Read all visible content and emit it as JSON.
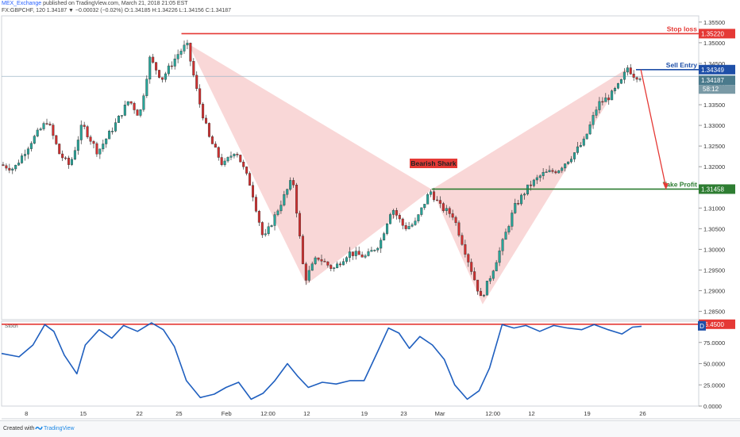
{
  "header": {
    "publisher": "MEX_Exchange",
    "line1_rest": "published on TradingView.com, March 21, 2018 21:05 EST",
    "line2": "FX:GBPCHF, 120  1.34187  ▼ −0.00032 (−0.02%)  O:1.34185  H:1.34226  L:1.34156  C:1.34187"
  },
  "footer": {
    "created_with": "Created with",
    "brand": "TradingView"
  },
  "colors": {
    "up": "#26a69a",
    "down": "#d32f2f",
    "outline": "#333333",
    "pattern_fill": "#f6c6c6",
    "stop_line": "#e53935",
    "entry_line": "#1e4fa8",
    "tp_line": "#2e7d32",
    "stoch": "#1f5fbf",
    "badge_red": "#e53935",
    "badge_green": "#2e7d32",
    "badge_blue": "#1e4fa8"
  },
  "chart_data": [
    {
      "type": "candlestick",
      "symbol": "FX:GBPCHF",
      "interval": "120",
      "ylim": [
        1.283,
        1.3565
      ],
      "y_ticks": [
        "1.35500",
        "1.35000",
        "1.34500",
        "1.34000",
        "1.33500",
        "1.33000",
        "1.32500",
        "1.32000",
        "1.31500",
        "1.31000",
        "1.30500",
        "1.30000",
        "1.29500",
        "1.29000",
        "1.28500"
      ],
      "x_ticks": [
        "8",
        "15",
        "22",
        "25",
        "Feb",
        "12:00",
        "12",
        "19",
        "23",
        "Mar",
        "12:00",
        "12",
        "19",
        "26"
      ],
      "levels": [
        {
          "label": "Stop loss",
          "value": 1.3522,
          "price_label": "1.35220",
          "color_key": "stop_line"
        },
        {
          "label": "Sell Entry",
          "value": 1.34349,
          "price_label": "1.34349",
          "color_key": "entry_line"
        },
        {
          "label": "Take Profit",
          "value": 1.31458,
          "price_label": "1.31458",
          "color_key": "tp_line"
        }
      ],
      "current_price": "1.34187",
      "countdown": "58:12",
      "pattern": {
        "label": "Bearish Shark",
        "points": [
          {
            "t": 0.268,
            "price": 1.3497
          },
          {
            "t": 0.437,
            "price": 1.2915
          },
          {
            "t": 0.617,
            "price": 1.3145
          },
          {
            "t": 0.69,
            "price": 1.2867
          },
          {
            "t": 0.9,
            "price": 1.344
          }
        ]
      },
      "waypoints": [
        {
          "t": 0.0,
          "price": 1.3205
        },
        {
          "t": 0.02,
          "price": 1.3195
        },
        {
          "t": 0.045,
          "price": 1.3262
        },
        {
          "t": 0.068,
          "price": 1.3312
        },
        {
          "t": 0.085,
          "price": 1.3232
        },
        {
          "t": 0.1,
          "price": 1.3202
        },
        {
          "t": 0.118,
          "price": 1.3302
        },
        {
          "t": 0.14,
          "price": 1.3235
        },
        {
          "t": 0.165,
          "price": 1.3302
        },
        {
          "t": 0.185,
          "price": 1.3362
        },
        {
          "t": 0.2,
          "price": 1.3322
        },
        {
          "t": 0.215,
          "price": 1.3462
        },
        {
          "t": 0.232,
          "price": 1.3412
        },
        {
          "t": 0.255,
          "price": 1.3472
        },
        {
          "t": 0.268,
          "price": 1.3497
        },
        {
          "t": 0.285,
          "price": 1.3362
        },
        {
          "t": 0.3,
          "price": 1.327
        },
        {
          "t": 0.32,
          "price": 1.3202
        },
        {
          "t": 0.338,
          "price": 1.3242
        },
        {
          "t": 0.36,
          "price": 1.3152
        },
        {
          "t": 0.378,
          "price": 1.3022
        },
        {
          "t": 0.4,
          "price": 1.3102
        },
        {
          "t": 0.42,
          "price": 1.3172
        },
        {
          "t": 0.437,
          "price": 1.2925
        },
        {
          "t": 0.455,
          "price": 1.2982
        },
        {
          "t": 0.478,
          "price": 1.2952
        },
        {
          "t": 0.5,
          "price": 1.2992
        },
        {
          "t": 0.525,
          "price": 1.2982
        },
        {
          "t": 0.545,
          "price": 1.3015
        },
        {
          "t": 0.562,
          "price": 1.3102
        },
        {
          "t": 0.58,
          "price": 1.3052
        },
        {
          "t": 0.595,
          "price": 1.3062
        },
        {
          "t": 0.617,
          "price": 1.3142
        },
        {
          "t": 0.632,
          "price": 1.3102
        },
        {
          "t": 0.65,
          "price": 1.3082
        },
        {
          "t": 0.668,
          "price": 1.2992
        },
        {
          "t": 0.69,
          "price": 1.288
        },
        {
          "t": 0.705,
          "price": 1.2942
        },
        {
          "t": 0.72,
          "price": 1.3012
        },
        {
          "t": 0.738,
          "price": 1.3102
        },
        {
          "t": 0.758,
          "price": 1.3152
        },
        {
          "t": 0.778,
          "price": 1.3182
        },
        {
          "t": 0.8,
          "price": 1.3192
        },
        {
          "t": 0.818,
          "price": 1.3222
        },
        {
          "t": 0.838,
          "price": 1.3262
        },
        {
          "t": 0.858,
          "price": 1.3352
        },
        {
          "t": 0.875,
          "price": 1.337
        },
        {
          "t": 0.89,
          "price": 1.3402
        },
        {
          "t": 0.9,
          "price": 1.344
        },
        {
          "t": 0.91,
          "price": 1.342
        },
        {
          "t": 0.918,
          "price": 1.34187
        }
      ]
    },
    {
      "type": "line",
      "title": "Stoch",
      "ylim": [
        0,
        100
      ],
      "y_ticks": [
        "75.0000",
        "50.0000",
        "25.0000",
        "0.0000"
      ],
      "level": {
        "value": 96.45,
        "label": "96.4500"
      },
      "badge": "D",
      "series": [
        {
          "t": 0.0,
          "value": 62
        },
        {
          "t": 0.025,
          "value": 58
        },
        {
          "t": 0.045,
          "value": 72
        },
        {
          "t": 0.062,
          "value": 96
        },
        {
          "t": 0.075,
          "value": 88
        },
        {
          "t": 0.09,
          "value": 60
        },
        {
          "t": 0.108,
          "value": 38
        },
        {
          "t": 0.12,
          "value": 72
        },
        {
          "t": 0.14,
          "value": 90
        },
        {
          "t": 0.158,
          "value": 80
        },
        {
          "t": 0.175,
          "value": 95
        },
        {
          "t": 0.195,
          "value": 88
        },
        {
          "t": 0.215,
          "value": 98
        },
        {
          "t": 0.232,
          "value": 90
        },
        {
          "t": 0.248,
          "value": 70
        },
        {
          "t": 0.265,
          "value": 30
        },
        {
          "t": 0.285,
          "value": 10
        },
        {
          "t": 0.305,
          "value": 14
        },
        {
          "t": 0.322,
          "value": 22
        },
        {
          "t": 0.34,
          "value": 28
        },
        {
          "t": 0.358,
          "value": 8
        },
        {
          "t": 0.375,
          "value": 15
        },
        {
          "t": 0.392,
          "value": 30
        },
        {
          "t": 0.41,
          "value": 50
        },
        {
          "t": 0.425,
          "value": 35
        },
        {
          "t": 0.44,
          "value": 22
        },
        {
          "t": 0.46,
          "value": 28
        },
        {
          "t": 0.48,
          "value": 26
        },
        {
          "t": 0.5,
          "value": 30
        },
        {
          "t": 0.52,
          "value": 30
        },
        {
          "t": 0.54,
          "value": 65
        },
        {
          "t": 0.555,
          "value": 92
        },
        {
          "t": 0.57,
          "value": 86
        },
        {
          "t": 0.585,
          "value": 68
        },
        {
          "t": 0.6,
          "value": 82
        },
        {
          "t": 0.618,
          "value": 72
        },
        {
          "t": 0.635,
          "value": 55
        },
        {
          "t": 0.65,
          "value": 25
        },
        {
          "t": 0.668,
          "value": 8
        },
        {
          "t": 0.685,
          "value": 18
        },
        {
          "t": 0.7,
          "value": 45
        },
        {
          "t": 0.718,
          "value": 96
        },
        {
          "t": 0.735,
          "value": 92
        },
        {
          "t": 0.752,
          "value": 95
        },
        {
          "t": 0.772,
          "value": 88
        },
        {
          "t": 0.792,
          "value": 95
        },
        {
          "t": 0.812,
          "value": 92
        },
        {
          "t": 0.832,
          "value": 90
        },
        {
          "t": 0.85,
          "value": 96
        },
        {
          "t": 0.87,
          "value": 90
        },
        {
          "t": 0.89,
          "value": 85
        },
        {
          "t": 0.905,
          "value": 93
        },
        {
          "t": 0.918,
          "value": 94
        }
      ]
    }
  ]
}
